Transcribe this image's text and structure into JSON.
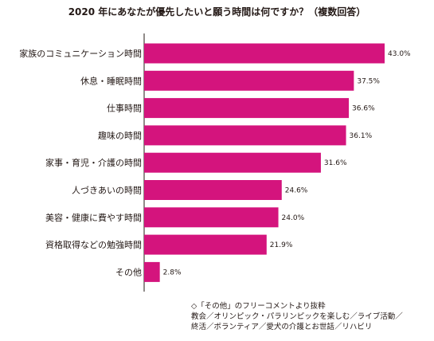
{
  "chart_data": {
    "type": "bar",
    "orientation": "horizontal",
    "title": "2020 年にあなたが優先したいと願う時間は何ですか？（複数回答）",
    "categories": [
      "家族のコミュニケーション時間",
      "休息・睡眠時間",
      "仕事時間",
      "趣味の時間",
      "家事・育児・介護の時間",
      "人づきあいの時間",
      "美容・健康に費やす時間",
      "資格取得などの勉強時間",
      "その他"
    ],
    "values": [
      43.0,
      37.5,
      36.6,
      36.1,
      31.6,
      24.6,
      24.0,
      21.9,
      2.8
    ],
    "value_labels": [
      "43.0%",
      "37.5%",
      "36.6%",
      "36.1%",
      "31.6%",
      "24.6%",
      "24.0%",
      "21.9%",
      "2.8%"
    ],
    "unit": "%",
    "xlim": [
      0,
      43.0
    ],
    "bar_color": "#d4147d",
    "axis_color": "#231815",
    "grid": false,
    "legend": "none"
  },
  "note": {
    "line1": "◇「その他」のフリーコメントより抜粋",
    "line2": "教会／オリンピック・パラリンピックを楽しむ／ライブ活動／",
    "line3": "終活／ボランティア／愛犬の介護とお世話／リハビリ"
  }
}
